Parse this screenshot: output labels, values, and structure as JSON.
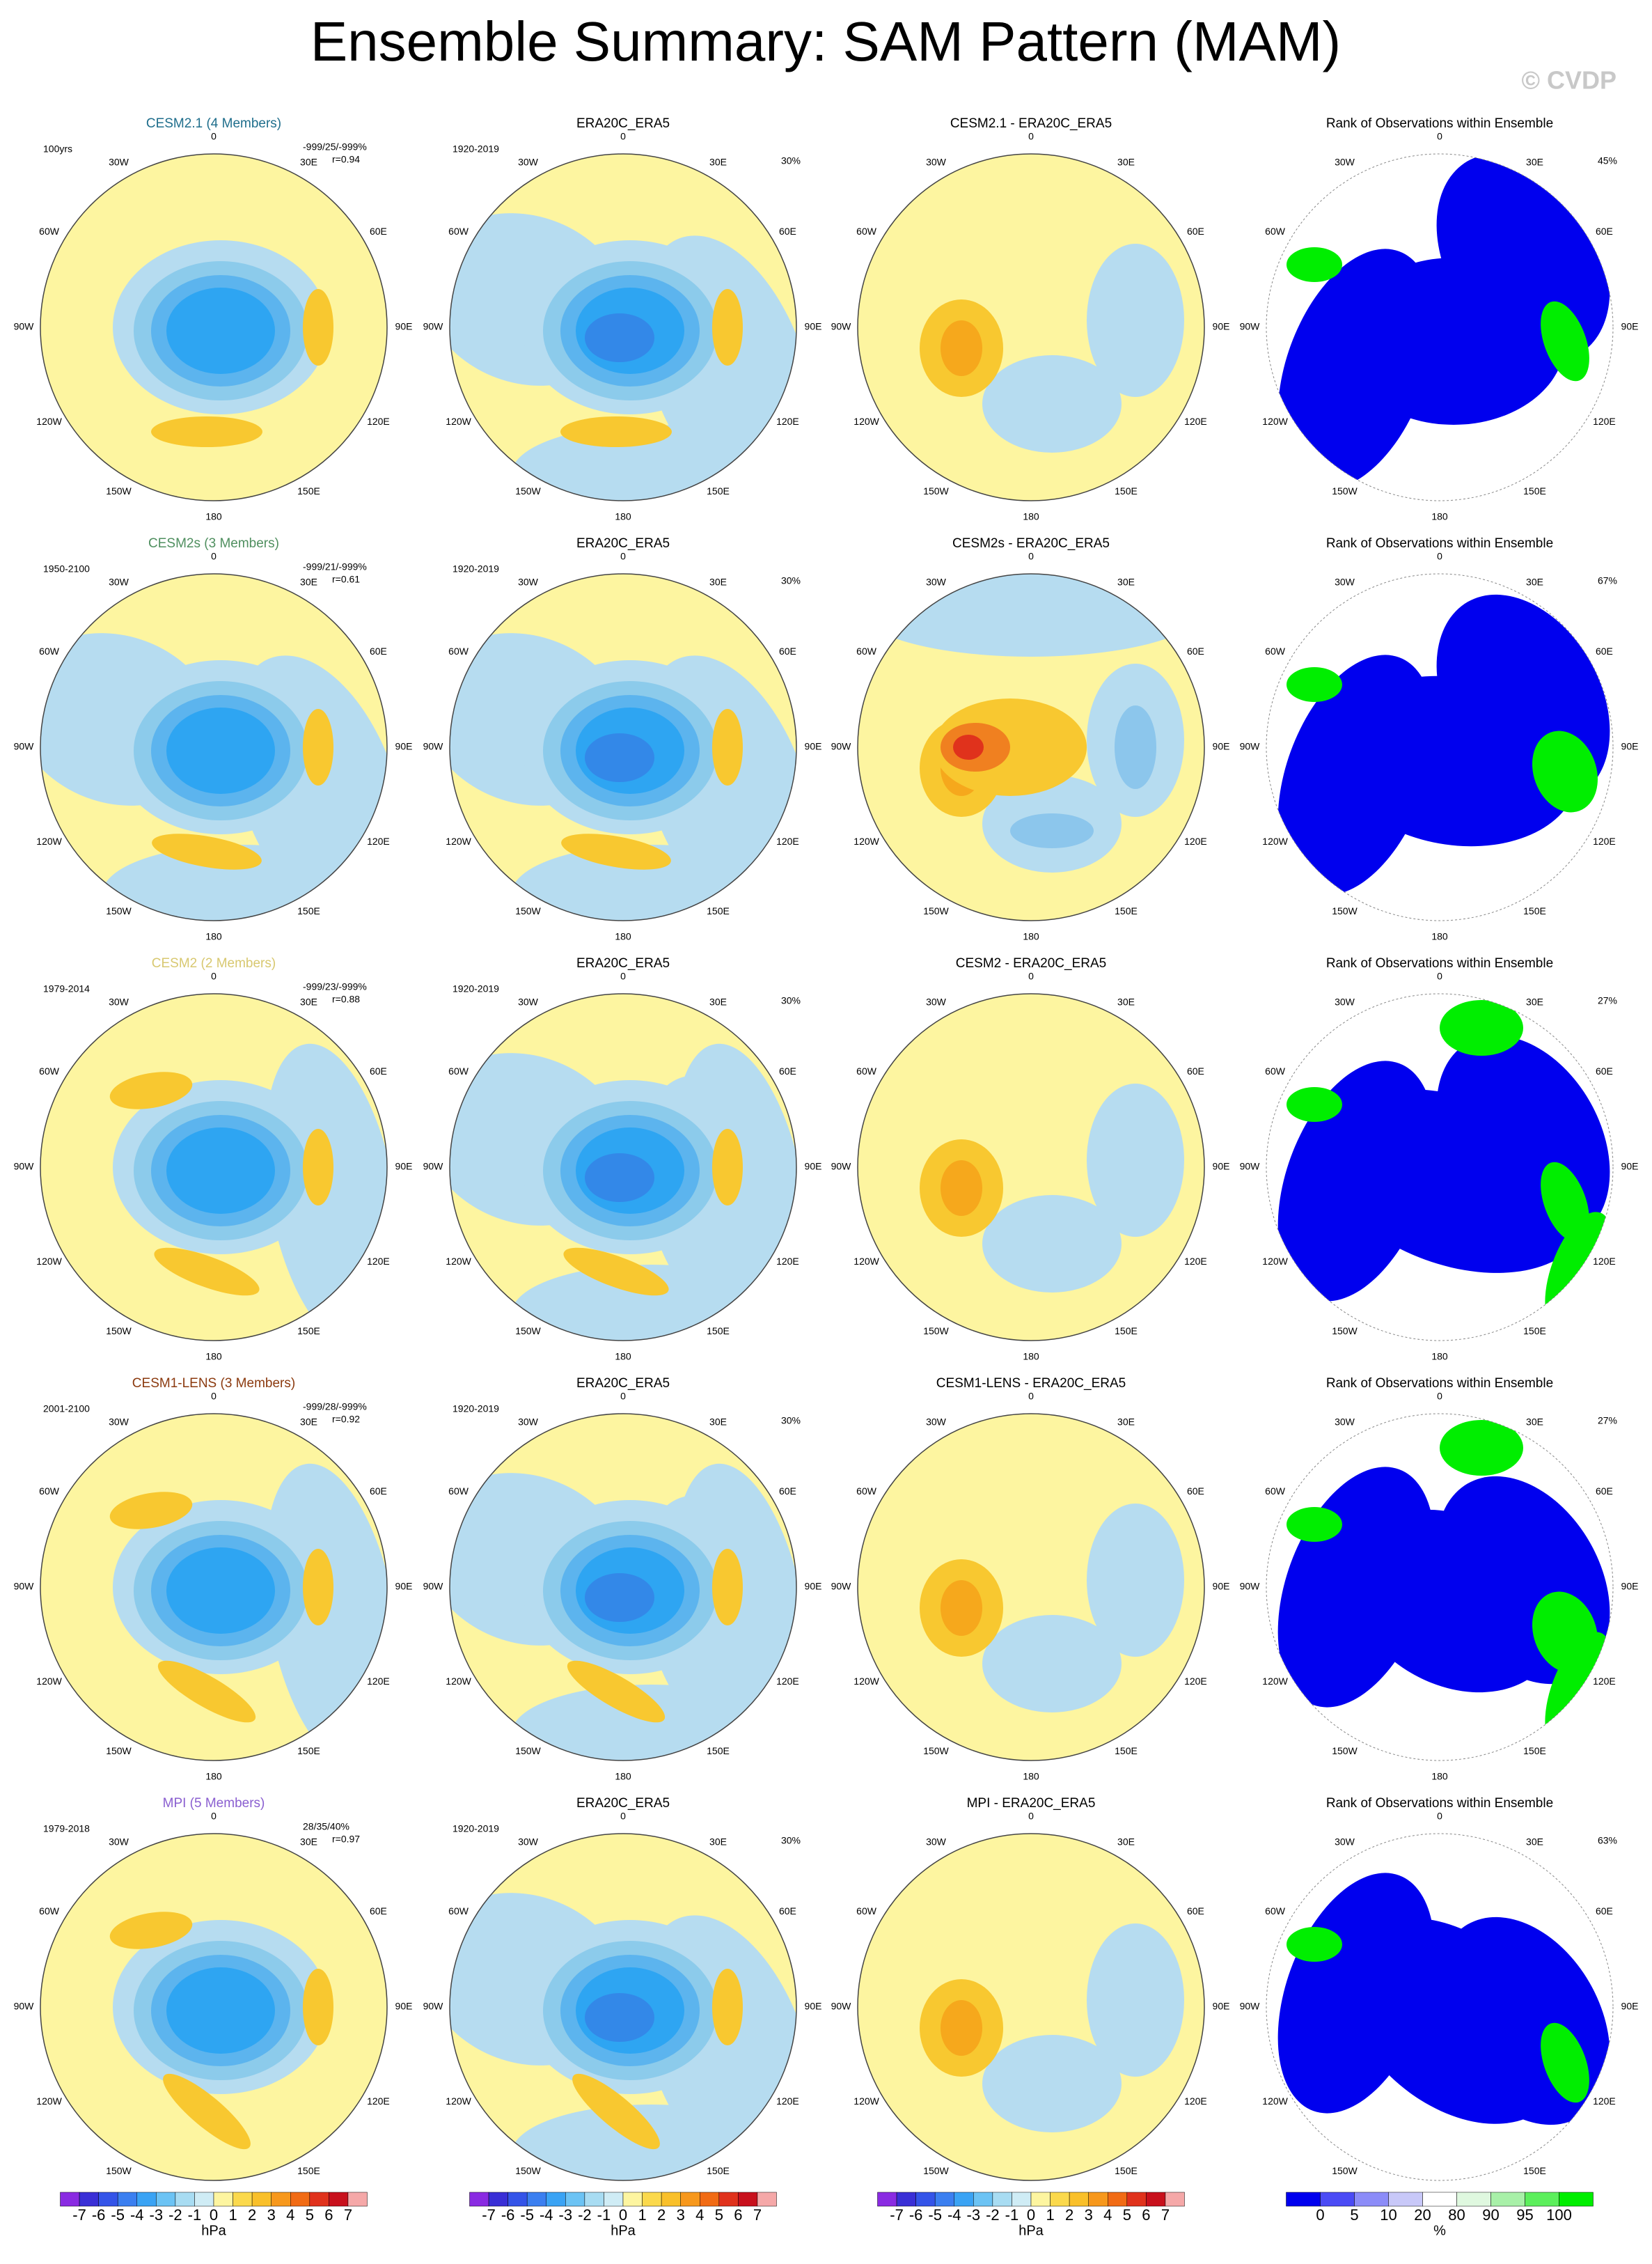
{
  "title": "Ensemble Summary: SAM Pattern (MAM)",
  "watermark": "© CVDP",
  "lon_labels": [
    "0",
    "30E",
    "60E",
    "90E",
    "120E",
    "150E",
    "180",
    "150W",
    "120W",
    "90W",
    "60W",
    "30W"
  ],
  "rows": [
    {
      "model": {
        "title": "CESM2.1 (4 Members)",
        "color": "#1f6e8c",
        "period": "100yrs",
        "stats": [
          "-999/25/-999%",
          "r=0.94"
        ]
      },
      "obs": {
        "title": "ERA20C_ERA5",
        "period": "1920-2019",
        "pct": "30%"
      },
      "diff": {
        "title": "CESM2.1 - ERA20C_ERA5"
      },
      "rank": {
        "title": "Rank of Observations within Ensemble",
        "pct": "45%"
      }
    },
    {
      "model": {
        "title": "CESM2s (3 Members)",
        "color": "#4f8f5f",
        "period": "1950-2100",
        "stats": [
          "-999/21/-999%",
          "r=0.61"
        ]
      },
      "obs": {
        "title": "ERA20C_ERA5",
        "period": "1920-2019",
        "pct": "30%"
      },
      "diff": {
        "title": "CESM2s - ERA20C_ERA5"
      },
      "rank": {
        "title": "Rank of Observations within Ensemble",
        "pct": "67%"
      }
    },
    {
      "model": {
        "title": "CESM2 (2 Members)",
        "color": "#d8c870",
        "period": "1979-2014",
        "stats": [
          "-999/23/-999%",
          "r=0.88"
        ]
      },
      "obs": {
        "title": "ERA20C_ERA5",
        "period": "1920-2019",
        "pct": "30%"
      },
      "diff": {
        "title": "CESM2 - ERA20C_ERA5"
      },
      "rank": {
        "title": "Rank of Observations within Ensemble",
        "pct": "27%"
      }
    },
    {
      "model": {
        "title": "CESM1-LENS (3 Members)",
        "color": "#8b3a0f",
        "period": "2001-2100",
        "stats": [
          "-999/28/-999%",
          "r=0.92"
        ]
      },
      "obs": {
        "title": "ERA20C_ERA5",
        "period": "1920-2019",
        "pct": "30%"
      },
      "diff": {
        "title": "CESM1-LENS - ERA20C_ERA5"
      },
      "rank": {
        "title": "Rank of Observations within Ensemble",
        "pct": "27%"
      }
    },
    {
      "model": {
        "title": "MPI (5 Members)",
        "color": "#8a5fd0",
        "period": "1979-2018",
        "stats": [
          "28/35/40%",
          "r=0.97"
        ]
      },
      "obs": {
        "title": "ERA20C_ERA5",
        "period": "1920-2019",
        "pct": "30%"
      },
      "diff": {
        "title": "MPI - ERA20C_ERA5"
      },
      "rank": {
        "title": "Rank of Observations within Ensemble",
        "pct": "63%"
      }
    }
  ],
  "colorbar": {
    "labels": [
      -7,
      -6,
      -5,
      -4,
      -3,
      -2,
      -1,
      0,
      1,
      2,
      3,
      4,
      5,
      6,
      7
    ],
    "unit": "hPa",
    "colors": [
      "#8a2be2",
      "#3a2fd6",
      "#3454e8",
      "#3b7ff0",
      "#3aa3f4",
      "#6cc3f4",
      "#a8dcf2",
      "#cfecf5",
      "#fdf5a0",
      "#fbd94c",
      "#f9c02a",
      "#f7981c",
      "#f16b14",
      "#e0321c",
      "#c8101c",
      "#f5a8a8"
    ]
  },
  "rank_colorbar": {
    "labels": [
      0,
      5,
      10,
      20,
      80,
      90,
      95,
      100
    ],
    "unit": "%",
    "colors": [
      "#0000ee",
      "#4b4bf5",
      "#8c8cf8",
      "#c8c8f8",
      "#ffffff",
      "#dff8df",
      "#a8f0a8",
      "#5cef5c",
      "#00ee00"
    ]
  }
}
